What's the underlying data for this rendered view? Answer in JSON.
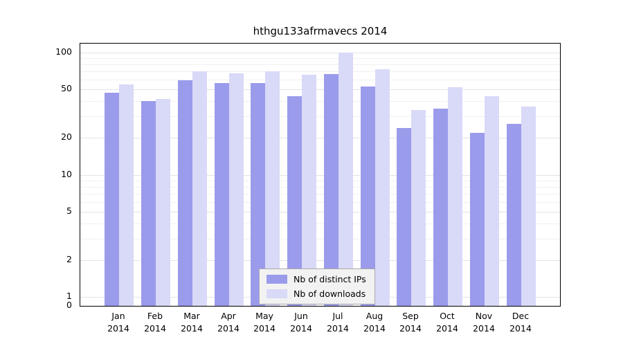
{
  "chart_data": {
    "type": "bar",
    "title": "hthgu133afrmavecs 2014",
    "categories": [
      "Jan",
      "Feb",
      "Mar",
      "Apr",
      "May",
      "Jun",
      "Jul",
      "Aug",
      "Sep",
      "Oct",
      "Nov",
      "Dec"
    ],
    "year": "2014",
    "series": [
      {
        "name": "Nb of distinct IPs",
        "color": "#9b9bec",
        "values": [
          47,
          40,
          59,
          56,
          56,
          44,
          67,
          53,
          24,
          35,
          22,
          26
        ]
      },
      {
        "name": "Nb of downloads",
        "color": "#d9d9f8",
        "values": [
          55,
          42,
          70,
          68,
          70,
          66,
          100,
          73,
          34,
          52,
          44,
          36
        ]
      }
    ],
    "yscale": "log",
    "ylim": [
      0,
      110
    ],
    "log_max": 100,
    "yticks": [
      0,
      1,
      2,
      5,
      10,
      20,
      50,
      100
    ],
    "minor_gridlines": [
      3,
      4,
      6,
      7,
      8,
      9,
      30,
      40,
      60,
      70,
      80,
      90
    ],
    "grid": true,
    "legend_position": "bottom-center"
  },
  "colors": {
    "grid_major": "#e3e3e3",
    "grid_minor": "#f0f0f0",
    "axis": "#000000",
    "legend_bg": "#f2f2f2",
    "legend_border": "#a8a8a8"
  }
}
